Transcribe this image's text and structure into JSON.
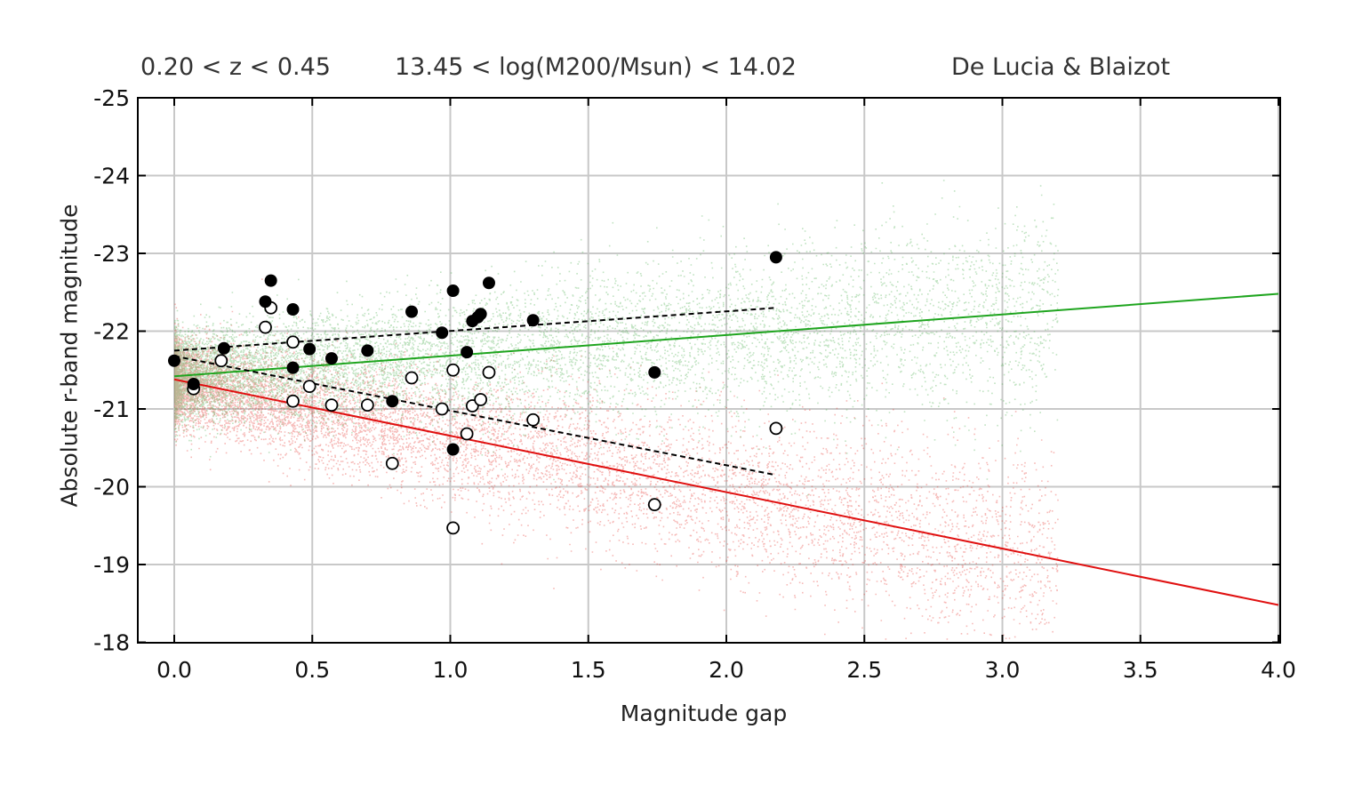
{
  "header": {
    "redshift_range": "0.20 < z < 0.45",
    "mass_range": "13.45 < log(M200/Msun) < 14.02",
    "model": "De Lucia & Blaizot"
  },
  "chart_data": {
    "type": "scatter",
    "title": "",
    "xlabel": "Magnitude gap",
    "ylabel": "Absolute r-band magnitude",
    "xlim": [
      0.0,
      4.0
    ],
    "ylim": [
      -17.85,
      -25.0
    ],
    "y_inverted": true,
    "grid": true,
    "xticks": [
      0.0,
      0.5,
      1.0,
      1.5,
      2.0,
      2.5,
      3.0,
      3.5,
      4.0
    ],
    "xtick_labels": [
      "0.0",
      "0.5",
      "1.0",
      "1.5",
      "2.0",
      "2.5",
      "3.0",
      "3.5",
      "4.0"
    ],
    "yticks": [
      -25,
      -24,
      -23,
      -22,
      -21,
      -20,
      -19,
      -18
    ],
    "ytick_labels": [
      "-25",
      "-24",
      "-23",
      "-22",
      "-21",
      "-20",
      "-19",
      "-18"
    ],
    "colors": {
      "green_fit": "#1fa51f",
      "red_fit": "#e01010",
      "green_cloud": "#4caf50",
      "red_cloud": "#e53935",
      "points": "#000000"
    },
    "series": [
      {
        "marker": "filled-circle",
        "x": [
          0.0,
          0.07,
          0.18,
          0.33,
          0.35,
          0.43,
          0.43,
          0.49,
          0.57,
          0.7,
          0.79,
          0.86,
          0.97,
          1.01,
          1.01,
          1.06,
          1.08,
          1.1,
          1.11,
          1.14,
          1.3,
          1.74,
          2.18
        ],
        "y": [
          -21.62,
          -21.32,
          -21.78,
          -22.38,
          -22.65,
          -22.28,
          -21.53,
          -21.77,
          -21.65,
          -21.75,
          -21.1,
          -22.25,
          -21.98,
          -22.52,
          -20.48,
          -21.73,
          -22.13,
          -22.18,
          -22.22,
          -22.62,
          -22.14,
          -21.47,
          -22.95
        ]
      },
      {
        "marker": "open-circle",
        "x": [
          0.07,
          0.17,
          0.33,
          0.35,
          0.43,
          0.43,
          0.49,
          0.57,
          0.7,
          0.79,
          0.86,
          0.97,
          1.01,
          1.01,
          1.06,
          1.08,
          1.11,
          1.14,
          1.3,
          1.74,
          2.18
        ],
        "y": [
          -21.26,
          -21.62,
          -22.05,
          -22.3,
          -21.86,
          -21.1,
          -21.29,
          -21.05,
          -21.05,
          -20.3,
          -21.4,
          -21.0,
          -21.5,
          -19.47,
          -20.68,
          -21.04,
          -21.12,
          -21.47,
          -20.86,
          -19.77,
          -20.75
        ]
      },
      {
        "style": "solid-line",
        "color": "green",
        "x": [
          0.0,
          4.0
        ],
        "y": [
          -21.42,
          -22.48
        ]
      },
      {
        "style": "solid-line",
        "color": "red",
        "x": [
          0.0,
          4.0
        ],
        "y": [
          -21.38,
          -18.48
        ]
      },
      {
        "style": "dashed-line",
        "color": "black",
        "x": [
          0.0,
          2.18
        ],
        "y": [
          -21.75,
          -22.3
        ]
      },
      {
        "style": "dashed-line",
        "color": "black",
        "x": [
          0.0,
          2.18
        ],
        "y": [
          -21.68,
          -20.15
        ]
      }
    ]
  }
}
